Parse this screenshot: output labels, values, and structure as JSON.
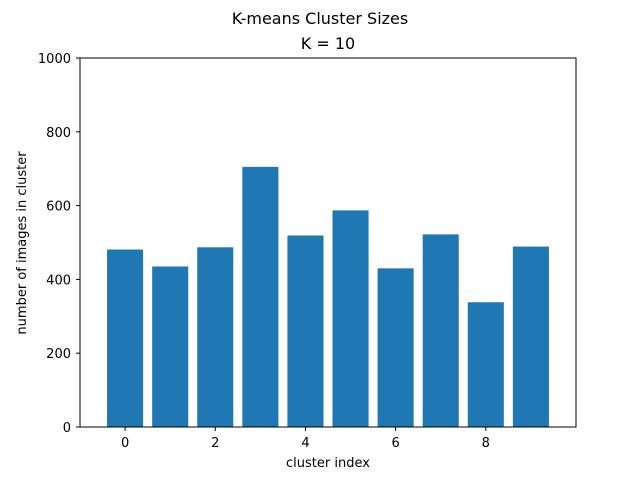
{
  "chart_data": {
    "type": "bar",
    "title": "K-means Cluster Sizes",
    "subtitle": "K = 10",
    "xlabel": "cluster index",
    "ylabel": "number of images in cluster",
    "x": [
      0,
      1,
      2,
      3,
      4,
      5,
      6,
      7,
      8,
      9
    ],
    "values": [
      481,
      435,
      487,
      705,
      519,
      587,
      430,
      522,
      338,
      489
    ],
    "xlim": [
      -1.0,
      10.0
    ],
    "ylim": [
      0,
      1000
    ],
    "xticks": [
      0,
      2,
      4,
      6,
      8
    ],
    "xtick_labels": [
      "0",
      "2",
      "4",
      "6",
      "8"
    ],
    "yticks": [
      0,
      200,
      400,
      600,
      800,
      1000
    ],
    "ytick_labels": [
      "0",
      "200",
      "400",
      "600",
      "800",
      "1000"
    ],
    "bar_width": 0.8,
    "bar_color": "#1f77b4",
    "grid": false,
    "legend": "none"
  }
}
